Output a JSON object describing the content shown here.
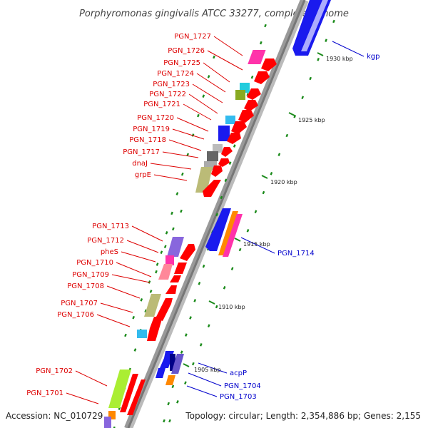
{
  "title": "Porphyromonas gingivalis ATCC 33277, complete genome",
  "footer": {
    "accession": "Accession: NC_010729",
    "summary": "Topology: circular; Length: 2,354,886 bp; Genes: 2,155"
  },
  "colors": {
    "left_label": "#dd0000",
    "right_label": "#0000cc",
    "backbone": "#999999",
    "tick": "#1a8a1a",
    "forward_gene": "#ff0000",
    "reverse_gene": "#0000ee"
  },
  "left_genes": [
    {
      "name": "PGN_1727"
    },
    {
      "name": "PGN_1726"
    },
    {
      "name": "PGN_1725"
    },
    {
      "name": "PGN_1724"
    },
    {
      "name": "PGN_1723"
    },
    {
      "name": "PGN_1722"
    },
    {
      "name": "PGN_1721"
    },
    {
      "name": "PGN_1720"
    },
    {
      "name": "PGN_1719"
    },
    {
      "name": "PGN_1718"
    },
    {
      "name": "PGN_1717"
    },
    {
      "name": "dnaJ"
    },
    {
      "name": "grpE"
    },
    {
      "name": "PGN_1713"
    },
    {
      "name": "PGN_1712"
    },
    {
      "name": "pheS"
    },
    {
      "name": "PGN_1710"
    },
    {
      "name": "PGN_1709"
    },
    {
      "name": "PGN_1708"
    },
    {
      "name": "PGN_1707"
    },
    {
      "name": "PGN_1706"
    },
    {
      "name": "PGN_1702"
    },
    {
      "name": "PGN_1701"
    }
  ],
  "right_genes": [
    {
      "name": "kgp"
    },
    {
      "name": "PGN_1714"
    },
    {
      "name": "acpP"
    },
    {
      "name": "PGN_1704"
    },
    {
      "name": "PGN_1703"
    }
  ],
  "ruler": [
    "1930 kbp",
    "1925 kbp",
    "1920 kbp",
    "1915 kbp",
    "1910 kbp",
    "1905 kbp"
  ]
}
